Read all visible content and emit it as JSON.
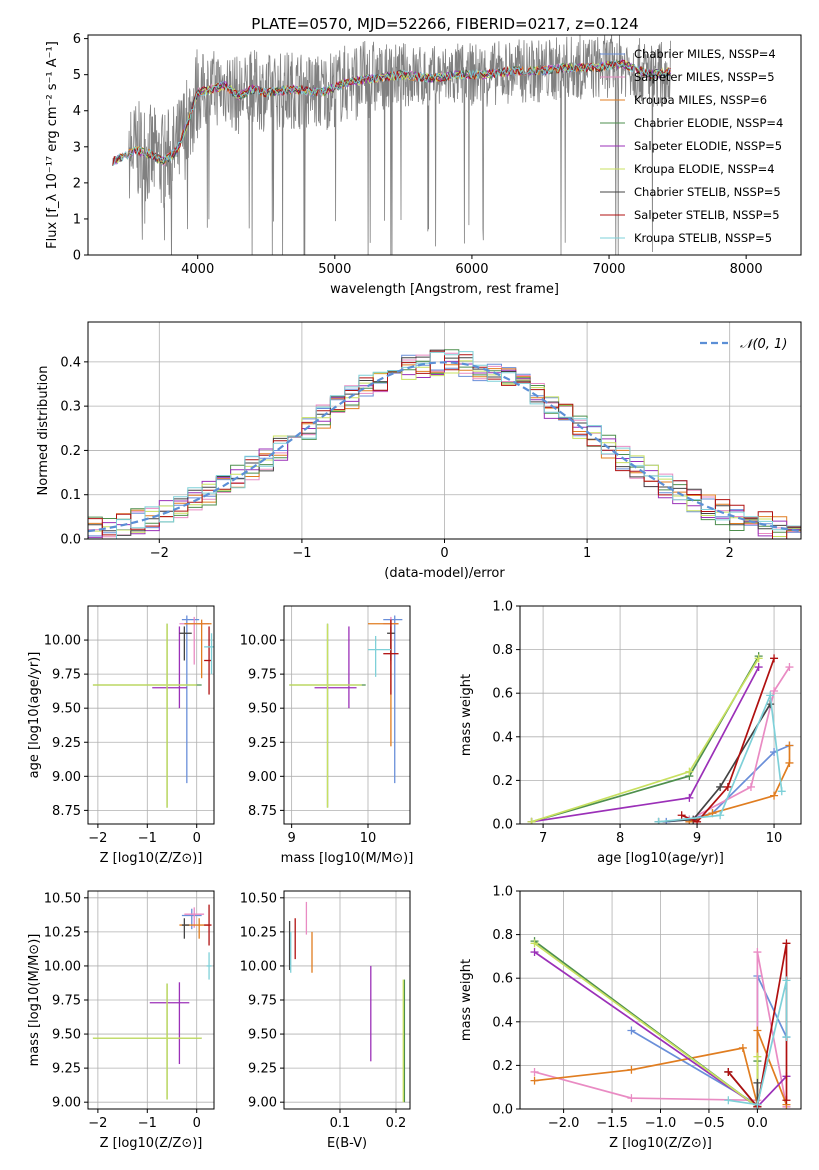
{
  "figure": {
    "title": "PLATE=0570, MJD=52266, FIBERID=0217, z=0.124"
  },
  "palette": {
    "Chabrier MILES": "#6a8fd9",
    "Salpeter MILES": "#e98bc3",
    "Kroupa MILES": "#e07d20",
    "Chabrier ELODIE": "#4e8f4e",
    "Salpeter ELODIE": "#9b30b8",
    "Kroupa ELODIE": "#c8e060",
    "Chabrier STELIB": "#444444",
    "Salpeter STELIB": "#b01010",
    "Kroupa STELIB": "#7ed0d8",
    "data": "#808080",
    "normal": "#5b8fd6"
  },
  "chart_data": [
    {
      "id": "spectrum",
      "type": "line",
      "title": "PLATE=0570, MJD=52266, FIBERID=0217, z=0.124",
      "xlabel": "wavelength [Angstrom, rest frame]",
      "ylabel": "Flux [f_λ 10⁻¹⁷ erg cm⁻² s⁻¹ A⁻¹]",
      "xlim": [
        3200,
        8400
      ],
      "ylim": [
        0,
        6.1
      ],
      "xticks": [
        4000,
        5000,
        6000,
        7000,
        8000
      ],
      "yticks": [
        0,
        1,
        2,
        3,
        4,
        5,
        6
      ],
      "grid": false,
      "legend_position": "top-right",
      "legend": [
        "Chabrier MILES, N_SSP=4",
        "Salpeter MILES, N_SSP=5",
        "Kroupa MILES, N_SSP=6",
        "Chabrier ELODIE, N_SSP=4",
        "Salpeter ELODIE, N_SSP=5",
        "Kroupa ELODIE, N_SSP=4",
        "Chabrier STELIB, N_SSP=5",
        "Salpeter STELIB, N_SSP=5",
        "Kroupa STELIB, N_SSP=5"
      ],
      "model_continuum": {
        "x": [
          3380,
          3450,
          3550,
          3650,
          3750,
          3850,
          3920,
          4000,
          4100,
          4200,
          4300,
          4400,
          4500,
          4700,
          4900,
          5100,
          5300,
          5500,
          5700,
          5900,
          6100,
          6300,
          6500,
          6700,
          6900,
          7100,
          7300,
          7500
        ],
        "y": [
          2.6,
          2.7,
          2.9,
          2.8,
          2.6,
          2.9,
          3.6,
          4.5,
          4.6,
          4.7,
          4.4,
          4.6,
          4.5,
          4.6,
          4.5,
          4.8,
          4.9,
          5.0,
          4.9,
          5.0,
          5.0,
          5.1,
          5.1,
          5.2,
          5.2,
          5.3,
          5.0,
          5.1
        ]
      },
      "data_noise_region_start": 3500,
      "data_noise_region_end": 7450
    },
    {
      "id": "residuals",
      "type": "histogram",
      "xlabel": "(data-model)/error",
      "ylabel": "Normed distribution",
      "xlim": [
        -2.5,
        2.5
      ],
      "ylim": [
        0,
        0.49
      ],
      "xticks": [
        -2,
        -1,
        0,
        1,
        2
      ],
      "yticks": [
        0.0,
        0.1,
        0.2,
        0.3,
        0.4
      ],
      "grid": true,
      "legend_position": "top-right",
      "legend": [
        "N(0,1)"
      ],
      "bin_width": 0.1
    },
    {
      "id": "age_vs_Z",
      "type": "errorbar",
      "xlabel": "Z [log10(Z/Z⊙)]",
      "ylabel": "age [log10(age/yr)]",
      "xlim": [
        -2.2,
        0.35
      ],
      "ylim": [
        8.65,
        10.25
      ],
      "xticks": [
        -2,
        -1,
        0
      ],
      "yticks": [
        8.75,
        9.0,
        9.25,
        9.5,
        9.75,
        10.0
      ],
      "grid": true,
      "points": [
        {
          "series": "Chabrier MILES",
          "x": -0.2,
          "xerr": [
            0.1,
            0.25
          ],
          "y": 10.15,
          "yerr": [
            1.2,
            0.03
          ]
        },
        {
          "series": "Salpeter MILES",
          "x": -0.05,
          "xerr": [
            0.3,
            0.3
          ],
          "y": 10.12,
          "yerr": [
            0.3,
            0.05
          ]
        },
        {
          "series": "Kroupa MILES",
          "x": 0.1,
          "xerr": [
            0.35,
            0.2
          ],
          "y": 10.12,
          "yerr": [
            0.4,
            0.03
          ]
        },
        {
          "series": "Chabrier ELODIE",
          "x": -0.6,
          "xerr": [
            1.5,
            0.7
          ],
          "y": 9.67,
          "yerr": [
            0.9,
            0.45
          ]
        },
        {
          "series": "Salpeter ELODIE",
          "x": -0.35,
          "xerr": [
            0.55,
            0.15
          ],
          "y": 9.65,
          "yerr": [
            0.15,
            0.45
          ]
        },
        {
          "series": "Kroupa ELODIE",
          "x": -0.6,
          "xerr": [
            1.5,
            0.6
          ],
          "y": 9.67,
          "yerr": [
            0.9,
            0.45
          ]
        },
        {
          "series": "Chabrier STELIB",
          "x": -0.25,
          "xerr": [
            0.1,
            0.15
          ],
          "y": 10.05,
          "yerr": [
            0.2,
            0.05
          ]
        },
        {
          "series": "Salpeter STELIB",
          "x": 0.25,
          "xerr": [
            0.1,
            0.05
          ],
          "y": 9.85,
          "yerr": [
            0.25,
            0.25
          ]
        },
        {
          "series": "Kroupa STELIB",
          "x": 0.3,
          "xerr": [
            0.15,
            0.05
          ],
          "y": 9.95,
          "yerr": [
            0.2,
            0.1
          ]
        }
      ]
    },
    {
      "id": "age_vs_mass",
      "type": "errorbar",
      "xlabel": "mass [log10(M/M⊙)]",
      "ylabel": "",
      "xlim": [
        8.9,
        10.55
      ],
      "ylim": [
        8.65,
        10.25
      ],
      "xticks": [
        9,
        10
      ],
      "yticks": [
        8.75,
        9.0,
        9.25,
        9.5,
        9.75,
        10.0
      ],
      "grid": true,
      "points": [
        {
          "series": "Chabrier MILES",
          "x": 10.35,
          "xerr": [
            0.15,
            0.1
          ],
          "y": 10.15,
          "yerr": [
            1.2,
            0.03
          ]
        },
        {
          "series": "Salpeter MILES",
          "x": 10.3,
          "xerr": [
            0.1,
            0.1
          ],
          "y": 10.12,
          "yerr": [
            0.3,
            0.05
          ]
        },
        {
          "series": "Kroupa MILES",
          "x": 10.3,
          "xerr": [
            0.3,
            0.1
          ],
          "y": 10.12,
          "yerr": [
            0.9,
            0.03
          ]
        },
        {
          "series": "Chabrier ELODIE",
          "x": 9.47,
          "xerr": [
            0.5,
            0.5
          ],
          "y": 9.67,
          "yerr": [
            0.9,
            0.45
          ]
        },
        {
          "series": "Salpeter ELODIE",
          "x": 9.75,
          "xerr": [
            0.45,
            0.1
          ],
          "y": 9.65,
          "yerr": [
            0.15,
            0.45
          ]
        },
        {
          "series": "Kroupa ELODIE",
          "x": 9.47,
          "xerr": [
            0.5,
            0.45
          ],
          "y": 9.67,
          "yerr": [
            0.9,
            0.45
          ]
        },
        {
          "series": "Chabrier STELIB",
          "x": 10.3,
          "xerr": [
            0.05,
            0.05
          ],
          "y": 10.05,
          "yerr": [
            0.2,
            0.05
          ]
        },
        {
          "series": "Salpeter STELIB",
          "x": 10.3,
          "xerr": [
            0.1,
            0.1
          ],
          "y": 9.9,
          "yerr": [
            0.3,
            0.25
          ]
        },
        {
          "series": "Kroupa STELIB",
          "x": 10.1,
          "xerr": [
            0.1,
            0.2
          ],
          "y": 9.93,
          "yerr": [
            0.2,
            0.1
          ]
        }
      ]
    },
    {
      "id": "weight_vs_age",
      "type": "line",
      "xlabel": "age [log10(age/yr)]",
      "ylabel": "mass weight",
      "xlim": [
        6.7,
        10.35
      ],
      "ylim": [
        0,
        1.0
      ],
      "xticks": [
        7,
        8,
        9,
        10
      ],
      "yticks": [
        0.0,
        0.2,
        0.4,
        0.6,
        0.8,
        1.0
      ],
      "grid": true,
      "series": [
        {
          "series": "Chabrier MILES",
          "x": [
            8.6,
            8.9,
            9.2,
            10.0,
            10.2
          ],
          "y": [
            0.01,
            0.02,
            0.05,
            0.33,
            0.36
          ]
        },
        {
          "series": "Salpeter MILES",
          "x": [
            8.9,
            9.7,
            10.0,
            10.2
          ],
          "y": [
            0.02,
            0.17,
            0.61,
            0.72
          ]
        },
        {
          "series": "Kroupa MILES",
          "x": [
            8.9,
            9.2,
            10.0,
            10.2,
            10.2
          ],
          "y": [
            0.01,
            0.05,
            0.13,
            0.28,
            0.36
          ]
        },
        {
          "series": "Chabrier ELODIE",
          "x": [
            6.85,
            8.9,
            9.8
          ],
          "y": [
            0.01,
            0.22,
            0.77
          ]
        },
        {
          "series": "Salpeter ELODIE",
          "x": [
            6.85,
            8.9,
            9.8
          ],
          "y": [
            0.01,
            0.12,
            0.72
          ]
        },
        {
          "series": "Kroupa ELODIE",
          "x": [
            6.85,
            8.9,
            9.8
          ],
          "y": [
            0.01,
            0.24,
            0.76
          ]
        },
        {
          "series": "Chabrier STELIB",
          "x": [
            8.5,
            8.95,
            9.3,
            9.95
          ],
          "y": [
            0.01,
            0.02,
            0.17,
            0.55
          ]
        },
        {
          "series": "Salpeter STELIB",
          "x": [
            8.8,
            9.0,
            9.4,
            10.0
          ],
          "y": [
            0.04,
            0.01,
            0.17,
            0.76
          ]
        },
        {
          "series": "Kroupa STELIB",
          "x": [
            8.5,
            9.3,
            9.95,
            10.1
          ],
          "y": [
            0.01,
            0.04,
            0.59,
            0.15
          ]
        }
      ]
    },
    {
      "id": "mass_vs_Z",
      "type": "errorbar",
      "xlabel": "Z [log10(Z/Z⊙)]",
      "ylabel": "mass [log10(M/M⊙)]",
      "xlim": [
        -2.2,
        0.35
      ],
      "ylim": [
        8.95,
        10.55
      ],
      "xticks": [
        -2,
        -1,
        0
      ],
      "yticks": [
        9.0,
        9.25,
        9.5,
        9.75,
        10.0,
        10.25,
        10.5
      ],
      "grid": true,
      "points": [
        {
          "series": "Chabrier MILES",
          "x": -0.1,
          "xerr": [
            0.2,
            0.2
          ],
          "y": 10.37,
          "yerr": [
            0.1,
            0.05
          ]
        },
        {
          "series": "Salpeter MILES",
          "x": -0.05,
          "xerr": [
            0.2,
            0.2
          ],
          "y": 10.38,
          "yerr": [
            0.1,
            0.05
          ]
        },
        {
          "series": "Kroupa MILES",
          "x": 0.05,
          "xerr": [
            0.4,
            0.2
          ],
          "y": 10.3,
          "yerr": [
            0.1,
            0.05
          ]
        },
        {
          "series": "Chabrier ELODIE",
          "x": -0.6,
          "xerr": [
            1.5,
            0.7
          ],
          "y": 9.47,
          "yerr": [
            0.45,
            0.4
          ]
        },
        {
          "series": "Salpeter ELODIE",
          "x": -0.35,
          "xerr": [
            0.6,
            0.2
          ],
          "y": 9.73,
          "yerr": [
            0.45,
            0.15
          ]
        },
        {
          "series": "Kroupa ELODIE",
          "x": -0.6,
          "xerr": [
            1.5,
            0.7
          ],
          "y": 9.47,
          "yerr": [
            0.45,
            0.4
          ]
        },
        {
          "series": "Chabrier STELIB",
          "x": -0.25,
          "xerr": [
            0.05,
            0.1
          ],
          "y": 10.3,
          "yerr": [
            0.1,
            0.05
          ]
        },
        {
          "series": "Salpeter STELIB",
          "x": 0.25,
          "xerr": [
            0.1,
            0.05
          ],
          "y": 10.3,
          "yerr": [
            0.15,
            0.15
          ]
        },
        {
          "series": "Kroupa STELIB",
          "x": 0.25,
          "xerr": [
            0.05,
            0.05
          ],
          "y": 10.0,
          "yerr": [
            0.1,
            0.1
          ]
        }
      ]
    },
    {
      "id": "mass_vs_ebv",
      "type": "errorbar",
      "xlabel": "E(B-V)",
      "ylabel": "",
      "xlim": [
        0.0,
        0.225
      ],
      "ylim": [
        8.95,
        10.55
      ],
      "xticks": [
        0.1,
        0.2
      ],
      "yticks": [
        9.0,
        9.25,
        9.5,
        9.75,
        10.0,
        10.25,
        10.5
      ],
      "grid": true,
      "points": [
        {
          "series": "Chabrier MILES",
          "x": 0.01,
          "yerr": [
            0.1,
            0.1
          ],
          "y": 10.1
        },
        {
          "series": "Salpeter MILES",
          "x": 0.04,
          "yerr": [
            0.12,
            0.12
          ],
          "y": 10.35
        },
        {
          "series": "Kroupa MILES",
          "x": 0.05,
          "yerr": [
            0.15,
            0.15
          ],
          "y": 10.1
        },
        {
          "series": "Chabrier ELODIE",
          "x": 0.215,
          "yerr": [
            0.45,
            0.45
          ],
          "y": 9.45
        },
        {
          "series": "Salpeter ELODIE",
          "x": 0.155,
          "yerr": [
            0.35,
            0.35
          ],
          "y": 9.65
        },
        {
          "series": "Kroupa ELODIE",
          "x": 0.213,
          "yerr": [
            0.45,
            0.45
          ],
          "y": 9.45
        },
        {
          "series": "Chabrier STELIB",
          "x": 0.01,
          "yerr": [
            0.18,
            0.18
          ],
          "y": 10.15
        },
        {
          "series": "Salpeter STELIB",
          "x": 0.02,
          "yerr": [
            0.15,
            0.15
          ],
          "y": 10.2
        },
        {
          "series": "Kroupa STELIB",
          "x": 0.012,
          "yerr": [
            0.15,
            0.15
          ],
          "y": 10.1
        }
      ]
    },
    {
      "id": "weight_vs_Z",
      "type": "line",
      "xlabel": "Z [log10(Z/Z⊙)]",
      "ylabel": "mass weight",
      "xlim": [
        -2.45,
        0.45
      ],
      "ylim": [
        0,
        1.0
      ],
      "xticks": [
        -2.0,
        -1.5,
        -1.0,
        -0.5,
        0.0
      ],
      "yticks": [
        0.0,
        0.2,
        0.4,
        0.6,
        0.8,
        1.0
      ],
      "grid": true,
      "series": [
        {
          "series": "Chabrier MILES",
          "x": [
            -1.3,
            0.0,
            0.0,
            0.3
          ],
          "y": [
            0.36,
            0.02,
            0.61,
            0.33
          ]
        },
        {
          "series": "Salpeter MILES",
          "x": [
            -2.3,
            -1.3,
            0.0,
            0.0,
            0.3
          ],
          "y": [
            0.17,
            0.05,
            0.04,
            0.72,
            0.01
          ]
        },
        {
          "series": "Kroupa MILES",
          "x": [
            -2.3,
            -1.3,
            -0.15,
            0.0,
            0.0,
            0.3
          ],
          "y": [
            0.13,
            0.18,
            0.28,
            0.02,
            0.36,
            0.02
          ]
        },
        {
          "series": "Chabrier ELODIE",
          "x": [
            -2.3,
            0.0,
            0.0
          ],
          "y": [
            0.77,
            0.01,
            0.22
          ]
        },
        {
          "series": "Salpeter ELODIE",
          "x": [
            -2.3,
            0.0,
            0.3
          ],
          "y": [
            0.72,
            0.01,
            0.15
          ]
        },
        {
          "series": "Kroupa ELODIE",
          "x": [
            -2.3,
            0.0,
            0.0
          ],
          "y": [
            0.76,
            0.01,
            0.24
          ]
        },
        {
          "series": "Chabrier STELIB",
          "x": [
            -0.3,
            0.0,
            0.0
          ],
          "y": [
            0.17,
            0.01,
            0.12
          ]
        },
        {
          "series": "Salpeter STELIB",
          "x": [
            -0.3,
            0.0,
            0.3,
            0.3
          ],
          "y": [
            0.17,
            0.01,
            0.76,
            0.04
          ]
        },
        {
          "series": "Kroupa STELIB",
          "x": [
            -0.3,
            0.0,
            0.3,
            0.3
          ],
          "y": [
            0.04,
            0.02,
            0.59,
            0.33
          ]
        }
      ]
    }
  ]
}
